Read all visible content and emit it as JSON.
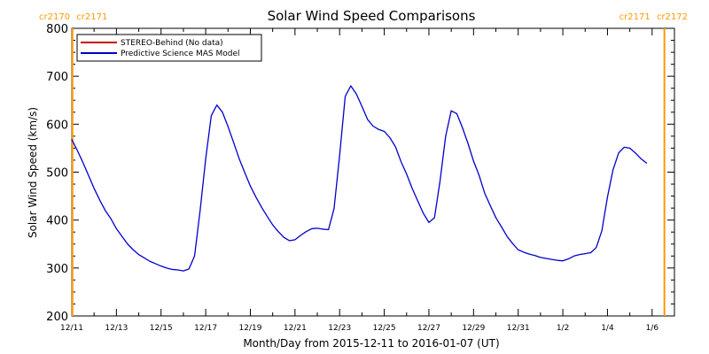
{
  "chart_data": {
    "type": "line",
    "title": "Solar Wind Speed Comparisons",
    "xlabel": "Month/Day from 2015-12-11 to 2016-01-07 (UT)",
    "ylabel": "Solar Wind Speed (km/s)",
    "xlim": [
      0,
      27
    ],
    "ylim": [
      200,
      800
    ],
    "y_ticks": [
      200,
      300,
      400,
      500,
      600,
      700,
      800
    ],
    "x_ticks": [
      {
        "x": 0,
        "label": "12/11"
      },
      {
        "x": 2,
        "label": "12/13"
      },
      {
        "x": 4,
        "label": "12/15"
      },
      {
        "x": 6,
        "label": "12/17"
      },
      {
        "x": 8,
        "label": "12/19"
      },
      {
        "x": 10,
        "label": "12/21"
      },
      {
        "x": 12,
        "label": "12/23"
      },
      {
        "x": 14,
        "label": "12/25"
      },
      {
        "x": 16,
        "label": "12/27"
      },
      {
        "x": 18,
        "label": "12/29"
      },
      {
        "x": 20,
        "label": "12/31"
      },
      {
        "x": 22,
        "label": "1/2"
      },
      {
        "x": 24,
        "label": "1/4"
      },
      {
        "x": 26,
        "label": "1/6"
      }
    ],
    "grid": false,
    "legend_position": "top-left",
    "legend": [
      {
        "name": "STEREO-Behind (No data)",
        "color": "#cc0000"
      },
      {
        "name": "Predictive Science MAS Model",
        "color": "#0000cc"
      }
    ],
    "carrington_markers": [
      {
        "x": 0.03,
        "color": "#ff9900",
        "label_left": "cr2170",
        "label_right": "cr2171"
      },
      {
        "x": 26.55,
        "color": "#ff9900",
        "label_left": "cr2171",
        "label_right": "cr2172"
      }
    ],
    "series": [
      {
        "name": "Predictive Science MAS Model",
        "color": "#0000cc",
        "points": [
          [
            0.0,
            568
          ],
          [
            0.25,
            545
          ],
          [
            0.5,
            520
          ],
          [
            0.75,
            493
          ],
          [
            1.0,
            466
          ],
          [
            1.25,
            442
          ],
          [
            1.5,
            420
          ],
          [
            1.75,
            403
          ],
          [
            2.0,
            382
          ],
          [
            2.25,
            366
          ],
          [
            2.5,
            350
          ],
          [
            2.75,
            338
          ],
          [
            3.0,
            328
          ],
          [
            3.25,
            321
          ],
          [
            3.5,
            314
          ],
          [
            3.75,
            309
          ],
          [
            4.0,
            304
          ],
          [
            4.25,
            300
          ],
          [
            4.5,
            297
          ],
          [
            4.75,
            296
          ],
          [
            5.0,
            294
          ],
          [
            5.25,
            298
          ],
          [
            5.5,
            325
          ],
          [
            5.75,
            420
          ],
          [
            6.0,
            528
          ],
          [
            6.25,
            618
          ],
          [
            6.5,
            640
          ],
          [
            6.75,
            625
          ],
          [
            7.0,
            595
          ],
          [
            7.25,
            562
          ],
          [
            7.5,
            528
          ],
          [
            7.75,
            499
          ],
          [
            8.0,
            471
          ],
          [
            8.25,
            448
          ],
          [
            8.5,
            427
          ],
          [
            8.75,
            408
          ],
          [
            9.0,
            390
          ],
          [
            9.25,
            376
          ],
          [
            9.5,
            364
          ],
          [
            9.75,
            357
          ],
          [
            10.0,
            359
          ],
          [
            10.25,
            368
          ],
          [
            10.5,
            376
          ],
          [
            10.75,
            382
          ],
          [
            11.0,
            383
          ],
          [
            11.25,
            381
          ],
          [
            11.5,
            380
          ],
          [
            11.75,
            424
          ],
          [
            12.0,
            535
          ],
          [
            12.25,
            658
          ],
          [
            12.5,
            680
          ],
          [
            12.75,
            663
          ],
          [
            13.0,
            637
          ],
          [
            13.25,
            610
          ],
          [
            13.5,
            596
          ],
          [
            13.75,
            589
          ],
          [
            14.0,
            585
          ],
          [
            14.25,
            572
          ],
          [
            14.5,
            553
          ],
          [
            14.75,
            522
          ],
          [
            15.0,
            496
          ],
          [
            15.25,
            466
          ],
          [
            15.5,
            440
          ],
          [
            15.75,
            414
          ],
          [
            16.0,
            395
          ],
          [
            16.25,
            405
          ],
          [
            16.5,
            482
          ],
          [
            16.75,
            575
          ],
          [
            17.0,
            628
          ],
          [
            17.25,
            622
          ],
          [
            17.5,
            593
          ],
          [
            17.75,
            560
          ],
          [
            18.0,
            523
          ],
          [
            18.25,
            493
          ],
          [
            18.5,
            456
          ],
          [
            18.75,
            430
          ],
          [
            19.0,
            405
          ],
          [
            19.25,
            386
          ],
          [
            19.5,
            366
          ],
          [
            19.75,
            351
          ],
          [
            20.0,
            338
          ],
          [
            20.25,
            333
          ],
          [
            20.5,
            329
          ],
          [
            20.75,
            326
          ],
          [
            21.0,
            322
          ],
          [
            21.25,
            320
          ],
          [
            21.5,
            318
          ],
          [
            21.75,
            316
          ],
          [
            22.0,
            315
          ],
          [
            22.25,
            319
          ],
          [
            22.5,
            325
          ],
          [
            22.75,
            328
          ],
          [
            23.0,
            330
          ],
          [
            23.25,
            332
          ],
          [
            23.5,
            343
          ],
          [
            23.75,
            378
          ],
          [
            24.0,
            448
          ],
          [
            24.25,
            505
          ],
          [
            24.5,
            540
          ],
          [
            24.75,
            552
          ],
          [
            25.0,
            550
          ],
          [
            25.25,
            540
          ],
          [
            25.5,
            528
          ],
          [
            25.75,
            519
          ]
        ]
      }
    ]
  }
}
